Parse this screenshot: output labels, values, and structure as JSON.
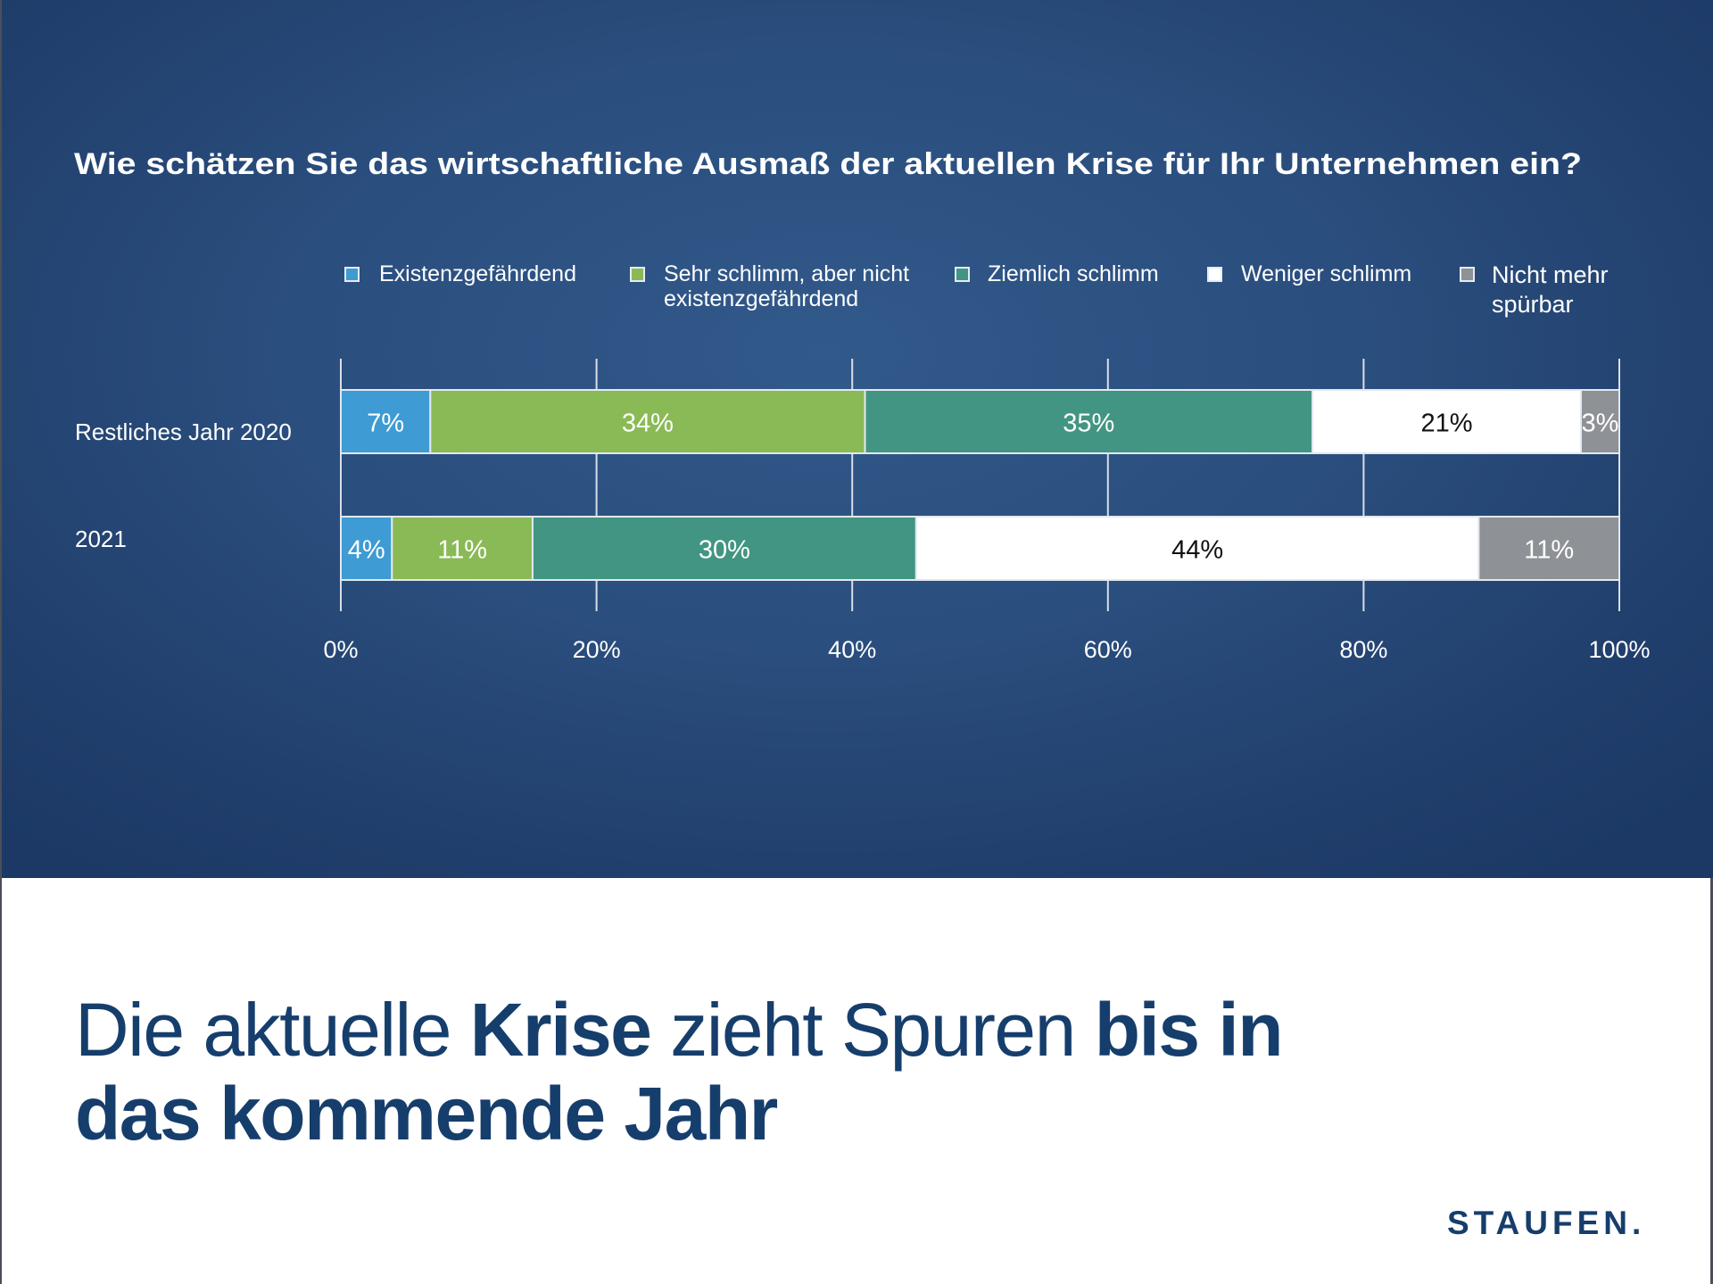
{
  "colors": {
    "background_dark": "#1c3966",
    "background_light": "#31598a",
    "headline": "#163e6c",
    "grid": "#d8dee8",
    "bar_border": "#e3e8ef"
  },
  "chart_data": {
    "type": "bar",
    "orientation": "horizontal",
    "stacked": true,
    "title": "Wie schätzen Sie das wirtschaftliche Ausmaß der aktuellen Krise für Ihr Unternehmen ein?",
    "categories": [
      "Restliches Jahr 2020",
      "2021"
    ],
    "series": [
      {
        "name": "Existenzgefährdend",
        "legend_lines": [
          "Existenzgefährdend"
        ],
        "color": "#3e9bd3",
        "label_color": "#ffffff",
        "values": [
          7,
          4
        ]
      },
      {
        "name": "Sehr schlimm, aber nicht existenzgefährdend",
        "legend_lines": [
          "Sehr schlimm, aber nicht",
          "existenzgefährdend"
        ],
        "color": "#8aba55",
        "label_color": "#ffffff",
        "values": [
          34,
          11
        ]
      },
      {
        "name": "Ziemlich schlimm",
        "legend_lines": [
          "Ziemlich schlimm"
        ],
        "color": "#429583",
        "label_color": "#ffffff",
        "values": [
          35,
          30
        ]
      },
      {
        "name": "Weniger schlimm",
        "legend_lines": [
          "Weniger schlimm"
        ],
        "color": "#ffffff",
        "label_color": "#111111",
        "values": [
          21,
          44
        ]
      },
      {
        "name": "Nicht mehr spürbar",
        "legend_lines": [
          "Nicht mehr",
          "spürbar"
        ],
        "color": "#8e9296",
        "label_color": "#ffffff",
        "values": [
          3,
          11
        ]
      }
    ],
    "xlabel": "",
    "ylabel": "",
    "xlim": [
      0,
      100
    ],
    "xticks": [
      0,
      20,
      40,
      60,
      80,
      100
    ],
    "xtick_labels": [
      "0%",
      "20%",
      "40%",
      "60%",
      "80%",
      "100%"
    ],
    "value_suffix": "%",
    "grid": true,
    "legend_position": "top"
  },
  "headline": {
    "parts_line1": [
      {
        "text": "Die aktuelle ",
        "bold": false
      },
      {
        "text": "Krise",
        "bold": true
      },
      {
        "text": " zieht Spuren ",
        "bold": false
      },
      {
        "text": "bis in",
        "bold": true
      }
    ],
    "parts_line2": [
      {
        "text": "das kommende Jahr",
        "bold": true
      }
    ]
  },
  "logo": {
    "text": "STAUFEN."
  }
}
